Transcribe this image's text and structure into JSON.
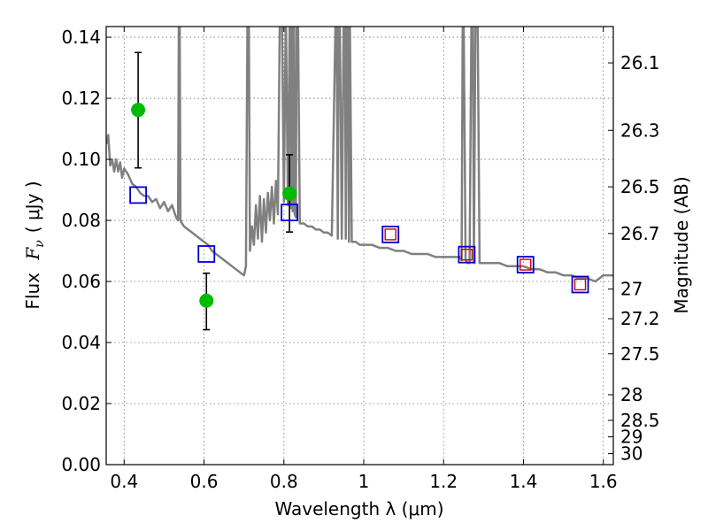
{
  "chart_data": {
    "type": "scatter",
    "xlabel": "Wavelength  λ (μm)",
    "ylabel": "Flux  F_ν  ( μJy )",
    "ylabel_parts": {
      "prefix": "Flux",
      "F": "F",
      "nu": "ν",
      "unit": "( μJy )"
    },
    "y2label": "Magnitude (AB)",
    "xlim": [
      0.355,
      1.625
    ],
    "ylim": [
      0.0,
      0.1435
    ],
    "xticks": [
      0.4,
      0.6,
      0.8,
      1.0,
      1.2,
      1.4,
      1.6
    ],
    "xtick_labels": [
      "0.4",
      "0.6",
      "0.8",
      "1",
      "1.2",
      "1.4",
      "1.6"
    ],
    "yticks": [
      0.0,
      0.02,
      0.04,
      0.06,
      0.08,
      0.1,
      0.12,
      0.14
    ],
    "ytick_labels": [
      "0.00",
      "0.02",
      "0.04",
      "0.06",
      "0.08",
      "0.10",
      "0.12",
      "0.14"
    ],
    "right_ticks": [
      {
        "label": "26.1",
        "flux": 0.1316
      },
      {
        "label": "26.3",
        "flux": 0.1095
      },
      {
        "label": "26.5",
        "flux": 0.091
      },
      {
        "label": "26.7",
        "flux": 0.0757
      },
      {
        "label": "27",
        "flux": 0.0575
      },
      {
        "label": "27.2",
        "flux": 0.0478
      },
      {
        "label": "27.5",
        "flux": 0.0363
      },
      {
        "label": "28",
        "flux": 0.0229
      },
      {
        "label": "28.5",
        "flux": 0.0145
      },
      {
        "label": "29",
        "flux": 0.0091
      },
      {
        "label": "30",
        "flux": 0.0036
      }
    ],
    "grid": true,
    "colors": {
      "model": "#808080",
      "observed": "#00bb00",
      "model_photometry": "#0000cc",
      "inner_marker": "#cc0000",
      "errorbar": "#000000"
    },
    "model_spectrum": {
      "x": [
        0.355,
        0.36,
        0.365,
        0.37,
        0.375,
        0.38,
        0.385,
        0.39,
        0.395,
        0.4,
        0.41,
        0.42,
        0.43,
        0.44,
        0.45,
        0.46,
        0.47,
        0.48,
        0.49,
        0.5,
        0.51,
        0.52,
        0.53,
        0.535,
        0.537,
        0.539,
        0.541,
        0.545,
        0.55,
        0.56,
        0.57,
        0.58,
        0.59,
        0.6,
        0.61,
        0.62,
        0.63,
        0.64,
        0.65,
        0.66,
        0.67,
        0.68,
        0.69,
        0.7,
        0.705,
        0.709,
        0.712,
        0.715,
        0.72,
        0.725,
        0.73,
        0.735,
        0.74,
        0.745,
        0.75,
        0.755,
        0.76,
        0.765,
        0.77,
        0.775,
        0.78,
        0.785,
        0.79,
        0.795,
        0.8,
        0.805,
        0.81,
        0.815,
        0.818,
        0.82,
        0.822,
        0.825,
        0.827,
        0.83,
        0.832,
        0.835,
        0.84,
        0.85,
        0.86,
        0.87,
        0.88,
        0.89,
        0.9,
        0.91,
        0.92,
        0.93,
        0.932,
        0.935,
        0.937,
        0.94,
        0.945,
        0.95,
        0.953,
        0.955,
        0.958,
        0.96,
        0.963,
        0.965,
        0.97,
        0.98,
        0.99,
        1.0,
        1.02,
        1.04,
        1.06,
        1.08,
        1.1,
        1.12,
        1.14,
        1.16,
        1.18,
        1.2,
        1.22,
        1.24,
        1.245,
        1.248,
        1.25,
        1.255,
        1.26,
        1.265,
        1.27,
        1.273,
        1.276,
        1.28,
        1.285,
        1.29,
        1.3,
        1.32,
        1.34,
        1.36,
        1.38,
        1.4,
        1.42,
        1.44,
        1.46,
        1.48,
        1.5,
        1.52,
        1.54,
        1.56,
        1.58,
        1.6,
        1.625
      ],
      "y": [
        0.105,
        0.108,
        0.098,
        0.1,
        0.096,
        0.1,
        0.096,
        0.099,
        0.094,
        0.097,
        0.095,
        0.092,
        0.091,
        0.089,
        0.088,
        0.088,
        0.086,
        0.087,
        0.084,
        0.086,
        0.083,
        0.085,
        0.081,
        0.08,
        0.15,
        0.15,
        0.08,
        0.079,
        0.078,
        0.077,
        0.076,
        0.075,
        0.074,
        0.073,
        0.072,
        0.07,
        0.069,
        0.068,
        0.067,
        0.066,
        0.065,
        0.064,
        0.063,
        0.062,
        0.065,
        0.15,
        0.15,
        0.07,
        0.078,
        0.072,
        0.085,
        0.074,
        0.088,
        0.073,
        0.087,
        0.076,
        0.089,
        0.08,
        0.091,
        0.079,
        0.093,
        0.082,
        0.15,
        0.15,
        0.086,
        0.15,
        0.085,
        0.15,
        0.084,
        0.15,
        0.083,
        0.15,
        0.082,
        0.081,
        0.15,
        0.15,
        0.079,
        0.079,
        0.078,
        0.078,
        0.077,
        0.077,
        0.076,
        0.076,
        0.075,
        0.15,
        0.15,
        0.074,
        0.15,
        0.15,
        0.074,
        0.15,
        0.15,
        0.074,
        0.15,
        0.15,
        0.073,
        0.15,
        0.073,
        0.073,
        0.072,
        0.072,
        0.072,
        0.071,
        0.071,
        0.07,
        0.07,
        0.069,
        0.069,
        0.069,
        0.068,
        0.068,
        0.068,
        0.068,
        0.067,
        0.15,
        0.15,
        0.067,
        0.066,
        0.066,
        0.15,
        0.15,
        0.066,
        0.15,
        0.15,
        0.066,
        0.066,
        0.066,
        0.066,
        0.065,
        0.065,
        0.065,
        0.064,
        0.064,
        0.063,
        0.063,
        0.062,
        0.062,
        0.061,
        0.061,
        0.06,
        0.062,
        0.062
      ]
    },
    "observed_points": [
      {
        "x": 0.435,
        "y": 0.1162,
        "yerr_low": 0.0972,
        "yerr_high": 0.135
      },
      {
        "x": 0.606,
        "y": 0.0537,
        "yerr_low": 0.0442,
        "yerr_high": 0.0627
      },
      {
        "x": 0.814,
        "y": 0.0888,
        "yerr_low": 0.0762,
        "yerr_high": 0.1015
      }
    ],
    "model_photometry": [
      {
        "x": 0.435,
        "y": 0.0883
      },
      {
        "x": 0.606,
        "y": 0.069
      },
      {
        "x": 0.814,
        "y": 0.0826
      },
      {
        "x": 1.067,
        "y": 0.0754
      },
      {
        "x": 1.258,
        "y": 0.0688
      },
      {
        "x": 1.405,
        "y": 0.0655
      },
      {
        "x": 1.542,
        "y": 0.059
      }
    ],
    "inner_markers": [
      {
        "x": 1.067,
        "y": 0.0754
      },
      {
        "x": 1.258,
        "y": 0.0688
      },
      {
        "x": 1.405,
        "y": 0.0655
      },
      {
        "x": 1.542,
        "y": 0.059
      }
    ]
  }
}
